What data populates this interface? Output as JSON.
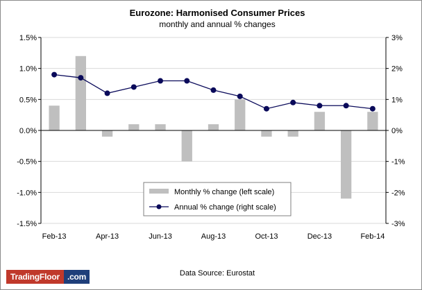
{
  "chart_data": {
    "type": "bar+line",
    "title": "Eurozone: Harmonised Consumer Prices",
    "subtitle": "monthly and annual % changes",
    "categories": [
      "Feb-13",
      "Mar-13",
      "Apr-13",
      "May-13",
      "Jun-13",
      "Jul-13",
      "Aug-13",
      "Sep-13",
      "Oct-13",
      "Nov-13",
      "Dec-13",
      "Jan-14",
      "Feb-14"
    ],
    "x_tick_labels": [
      "Feb-13",
      "Apr-13",
      "Jun-13",
      "Aug-13",
      "Oct-13",
      "Dec-13",
      "Feb-14"
    ],
    "series": [
      {
        "name": "Monthly % change (left scale)",
        "type": "bar",
        "axis": "left",
        "color": "#bfbfbf",
        "values": [
          0.4,
          1.2,
          -0.1,
          0.1,
          0.1,
          -0.5,
          0.1,
          0.5,
          -0.1,
          -0.1,
          0.3,
          -1.1,
          0.3
        ]
      },
      {
        "name": "Annual % change (right scale)",
        "type": "line",
        "axis": "right",
        "color": "#0a0a5a",
        "values": [
          1.8,
          1.7,
          1.2,
          1.4,
          1.6,
          1.6,
          1.3,
          1.1,
          0.7,
          0.9,
          0.8,
          0.8,
          0.7
        ]
      }
    ],
    "left_axis": {
      "min": -1.5,
      "max": 1.5,
      "ticks": [
        "1.5%",
        "1.0%",
        "0.5%",
        "0.0%",
        "-0.5%",
        "-1.0%",
        "-1.5%"
      ]
    },
    "right_axis": {
      "min": -3,
      "max": 3,
      "ticks": [
        "3%",
        "2%",
        "1%",
        "0%",
        "-1%",
        "-2%",
        "-3%"
      ]
    },
    "grid": "horizontal",
    "legend_position": "bottom-center"
  },
  "source": "Data Source: Eurostat",
  "logo": {
    "brand": "TradingFloor",
    "tld": ".com"
  }
}
